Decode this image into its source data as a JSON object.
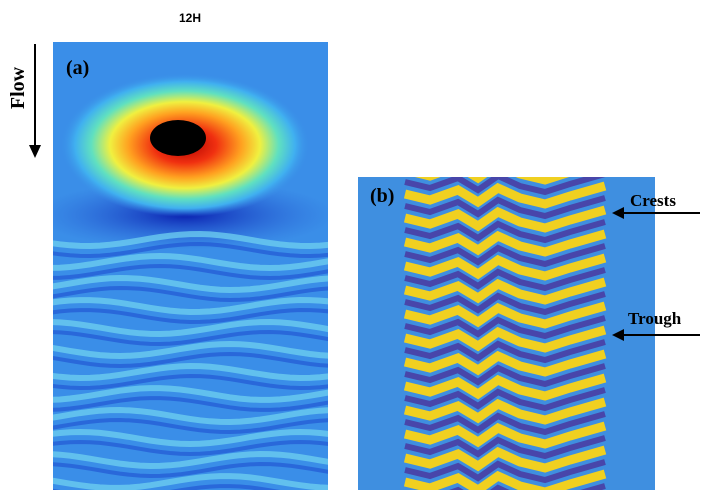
{
  "header": {
    "title": "12H"
  },
  "panels": [
    {
      "label": "(a)",
      "axis_label": "Flow"
    },
    {
      "label": "(b)",
      "annotations": [
        "Crests",
        "Trough"
      ]
    }
  ]
}
